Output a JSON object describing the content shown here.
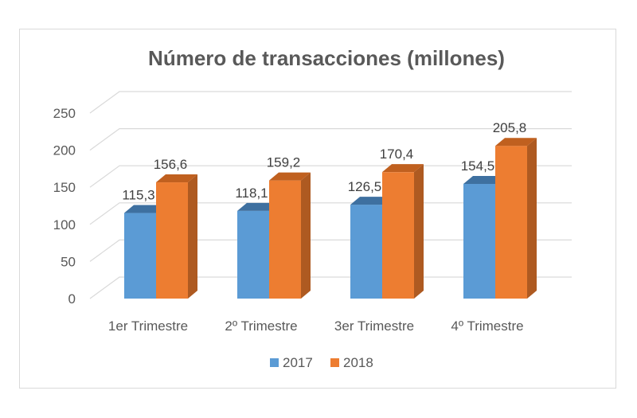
{
  "chart_data": {
    "type": "bar",
    "title": "Número de transacciones (millones)",
    "categories": [
      "1er Trimestre",
      "2º Trimestre",
      "3er Trimestre",
      "4º Trimestre"
    ],
    "series": [
      {
        "name": "2017",
        "values": [
          115.3,
          118.1,
          126.5,
          154.5
        ],
        "labels": [
          "115,3",
          "118,1",
          "126,5",
          "154,5"
        ],
        "color": "#5B9BD5",
        "side_color": "#41719C",
        "top_color": "#3E70A0"
      },
      {
        "name": "2018",
        "values": [
          156.6,
          159.2,
          170.4,
          205.8
        ],
        "labels": [
          "156,6",
          "159,2",
          "170,4",
          "205,8"
        ],
        "color": "#ED7D31",
        "side_color": "#AE5A21",
        "top_color": "#C0601F"
      }
    ],
    "y_ticks": [
      "0",
      "50",
      "100",
      "150",
      "200",
      "250"
    ],
    "ylim": [
      0,
      250
    ],
    "xlabel": "",
    "ylabel": "",
    "grid": true,
    "legend_position": "bottom"
  }
}
